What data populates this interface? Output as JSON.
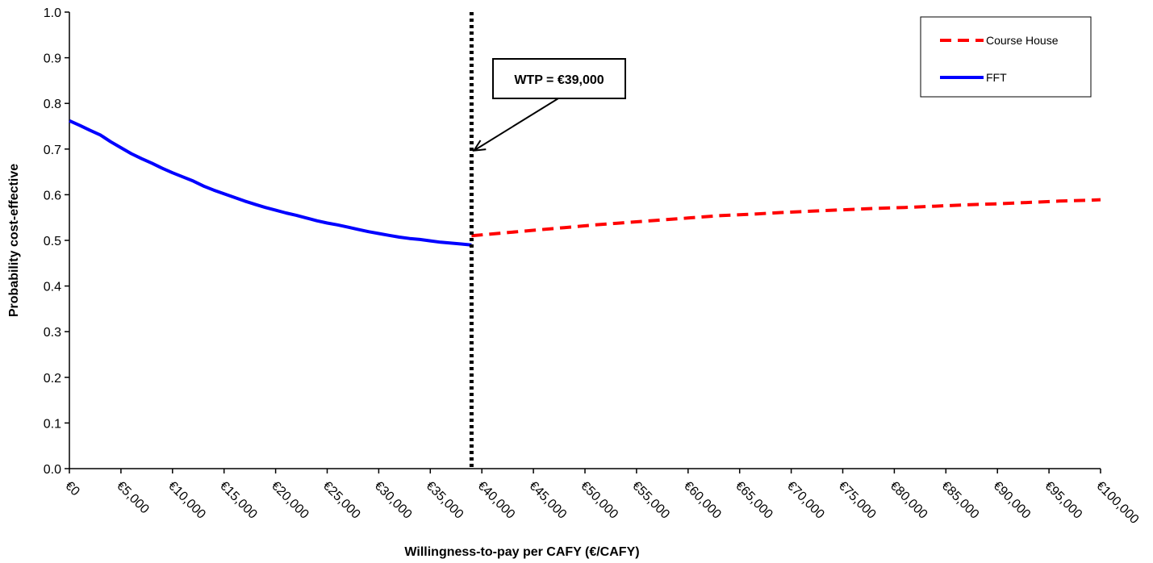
{
  "chart_data": {
    "type": "line",
    "xlabel": "Willingness-to-pay per CAFY (€/CAFY)",
    "ylabel": "Probability cost-effective",
    "xlim": [
      0,
      100000
    ],
    "ylim": [
      0.0,
      1.0
    ],
    "x_ticks": [
      {
        "value": 0,
        "label": "€0"
      },
      {
        "value": 5000,
        "label": "€5,000"
      },
      {
        "value": 10000,
        "label": "€10,000"
      },
      {
        "value": 15000,
        "label": "€15,000"
      },
      {
        "value": 20000,
        "label": "€20,000"
      },
      {
        "value": 25000,
        "label": "€25,000"
      },
      {
        "value": 30000,
        "label": "€30,000"
      },
      {
        "value": 35000,
        "label": "€35,000"
      },
      {
        "value": 40000,
        "label": "€40,000"
      },
      {
        "value": 45000,
        "label": "€45,000"
      },
      {
        "value": 50000,
        "label": "€50,000"
      },
      {
        "value": 55000,
        "label": "€55,000"
      },
      {
        "value": 60000,
        "label": "€60,000"
      },
      {
        "value": 65000,
        "label": "€65,000"
      },
      {
        "value": 70000,
        "label": "€70,000"
      },
      {
        "value": 75000,
        "label": "€75,000"
      },
      {
        "value": 80000,
        "label": "€80,000"
      },
      {
        "value": 85000,
        "label": "€85,000"
      },
      {
        "value": 90000,
        "label": "€90,000"
      },
      {
        "value": 95000,
        "label": "€95,000"
      },
      {
        "value": 100000,
        "label": "€100,000"
      }
    ],
    "y_ticks": [
      {
        "value": 0.0,
        "label": "0.0"
      },
      {
        "value": 0.1,
        "label": "0.1"
      },
      {
        "value": 0.2,
        "label": "0.2"
      },
      {
        "value": 0.3,
        "label": "0.3"
      },
      {
        "value": 0.4,
        "label": "0.4"
      },
      {
        "value": 0.5,
        "label": "0.5"
      },
      {
        "value": 0.6,
        "label": "0.6"
      },
      {
        "value": 0.7,
        "label": "0.7"
      },
      {
        "value": 0.8,
        "label": "0.8"
      },
      {
        "value": 0.9,
        "label": "0.9"
      },
      {
        "value": 1.0,
        "label": "1.0"
      }
    ],
    "grid": false,
    "legend_position": "top-right",
    "series": [
      {
        "name": "Course House",
        "color": "#ff0000",
        "style": "dashed",
        "x": [
          39000,
          42000,
          45000,
          48000,
          51000,
          54000,
          57000,
          60000,
          63000,
          66000,
          69000,
          72000,
          75000,
          78000,
          81000,
          84000,
          87000,
          90000,
          93000,
          96000,
          99000,
          100000
        ],
        "y": [
          0.51,
          0.516,
          0.522,
          0.528,
          0.534,
          0.539,
          0.544,
          0.549,
          0.554,
          0.557,
          0.561,
          0.564,
          0.567,
          0.57,
          0.572,
          0.575,
          0.578,
          0.58,
          0.583,
          0.586,
          0.588,
          0.589
        ]
      },
      {
        "name": "FFT",
        "color": "#0000ff",
        "style": "solid",
        "x": [
          0,
          1000,
          2000,
          3000,
          4000,
          5000,
          6000,
          7000,
          8000,
          9000,
          10000,
          11000,
          12000,
          13000,
          14000,
          15000,
          16000,
          17000,
          18000,
          19000,
          20000,
          21000,
          22000,
          23000,
          24000,
          25000,
          26000,
          27000,
          28000,
          29000,
          30000,
          31000,
          32000,
          33000,
          34000,
          35000,
          36000,
          37000,
          38000,
          39000
        ],
        "y": [
          0.762,
          0.752,
          0.741,
          0.731,
          0.716,
          0.703,
          0.69,
          0.679,
          0.669,
          0.658,
          0.648,
          0.639,
          0.63,
          0.619,
          0.61,
          0.602,
          0.594,
          0.586,
          0.579,
          0.572,
          0.566,
          0.56,
          0.555,
          0.549,
          0.543,
          0.538,
          0.534,
          0.529,
          0.524,
          0.519,
          0.515,
          0.511,
          0.507,
          0.504,
          0.502,
          0.499,
          0.496,
          0.494,
          0.492,
          0.49
        ]
      }
    ],
    "annotation": {
      "text": "WTP = €39,000",
      "wtp_value": 39000,
      "arrow_target_y": 0.725
    }
  }
}
